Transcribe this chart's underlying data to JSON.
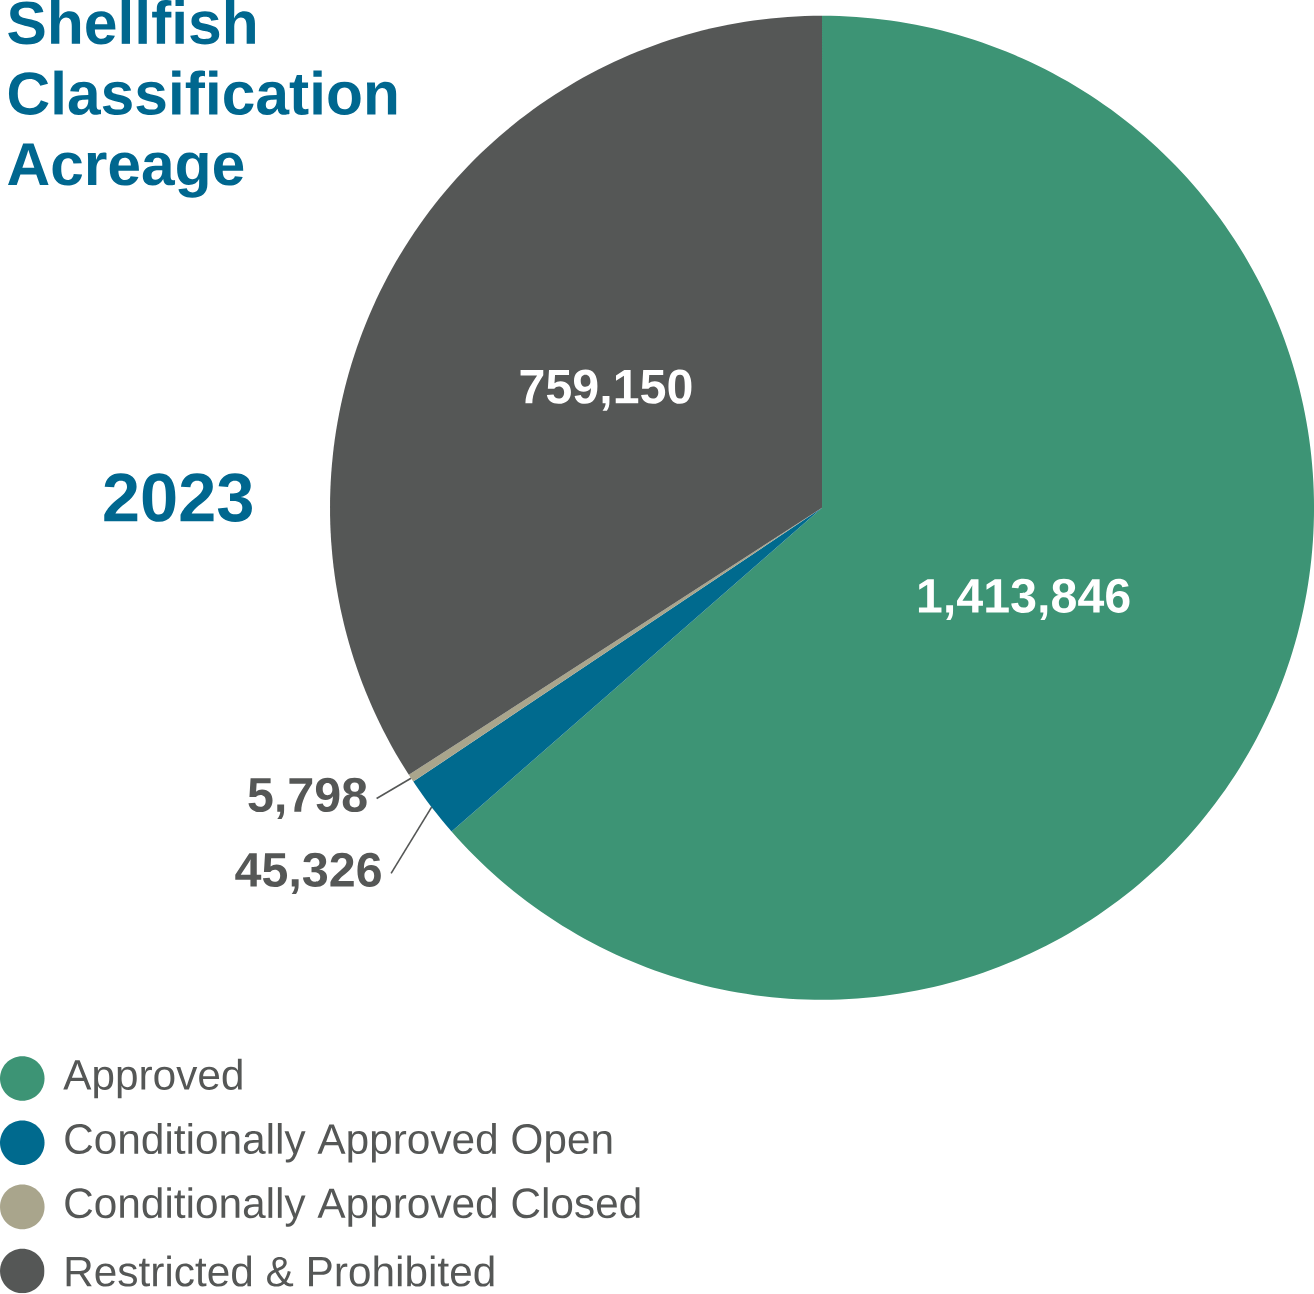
{
  "chart_data": {
    "type": "pie",
    "title": "Shellfish Classification Acreage",
    "subtitle": "2023",
    "categories": [
      "Approved",
      "Conditionally Approved Open",
      "Conditionally Approved Closed",
      "Restricted & Prohibited"
    ],
    "values": [
      1413846,
      45326,
      5798,
      759150
    ],
    "colors": [
      "#3d9475",
      "#006a8e",
      "#a9a58c",
      "#555756"
    ],
    "value_labels": [
      "1,413,846",
      "45,326",
      "5,798",
      "759,150"
    ],
    "legend": "bottom left"
  }
}
